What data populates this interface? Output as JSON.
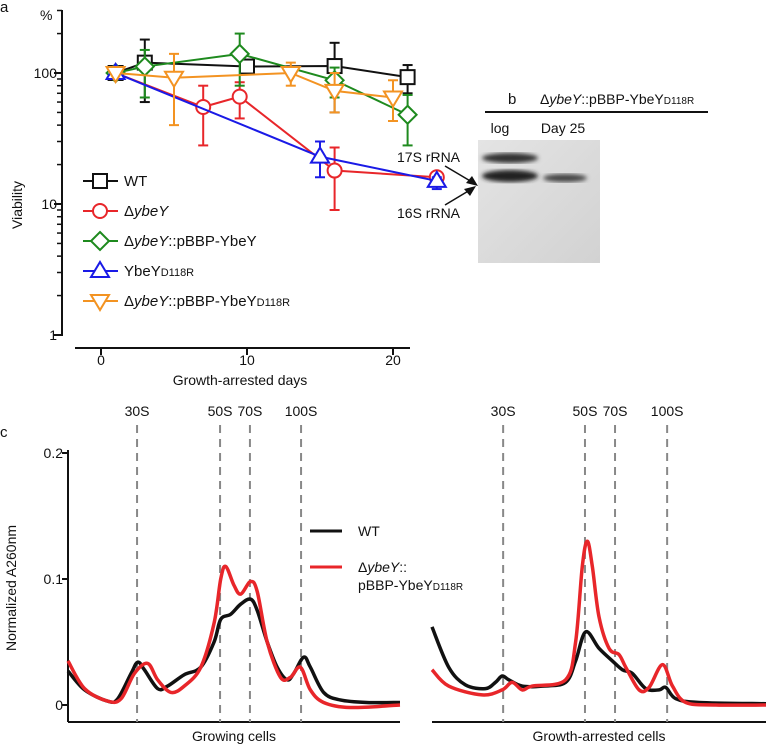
{
  "chart_data": [
    {
      "panel": "a",
      "type": "line",
      "yscale": "log",
      "xlabel": "Growth-arrested days",
      "ylabel": "Viability",
      "yunit": "%",
      "xlim": [
        -2,
        24
      ],
      "ylim": [
        1,
        300
      ],
      "xticks": [
        "0",
        "10",
        "20"
      ],
      "yticks": [
        "1",
        "10",
        "100"
      ],
      "legend_position": "bottom-left",
      "series": [
        {
          "name": "WT",
          "legend": {
            "prefix": "",
            "italic": "",
            "suffix": "WT",
            "sub": ""
          },
          "color": "#111111",
          "marker": "square",
          "x": [
            1,
            3,
            10,
            16,
            21
          ],
          "y": [
            100,
            120,
            112,
            113,
            93
          ],
          "err": [
            [
              100,
              100
            ],
            [
              60,
              180
            ],
            [
              100,
              125
            ],
            [
              50,
              170
            ],
            [
              70,
              115
            ]
          ]
        },
        {
          "name": "ΔybeY",
          "legend": {
            "prefix": "Δ",
            "italic": "ybeY",
            "suffix": "",
            "sub": ""
          },
          "color": "#e8262a",
          "marker": "circle",
          "x": [
            1,
            7,
            9.5,
            16,
            23
          ],
          "y": [
            100,
            55,
            66,
            18,
            16
          ],
          "err": [
            [
              100,
              100
            ],
            [
              28,
              80
            ],
            [
              45,
              85
            ],
            [
              9,
              27
            ],
            [
              15,
              17
            ]
          ]
        },
        {
          "name": "ΔybeY::pBBP-YbeY",
          "legend": {
            "prefix": "Δ",
            "italic": "ybeY",
            "suffix": "::pBBP-YbeY",
            "sub": ""
          },
          "color": "#1e8a1e",
          "marker": "diamond",
          "x": [
            1,
            3,
            9.5,
            16,
            21
          ],
          "y": [
            100,
            112,
            140,
            88,
            48
          ],
          "err": [
            [
              100,
              100
            ],
            [
              65,
              150
            ],
            [
              80,
              200
            ],
            [
              65,
              110
            ],
            [
              28,
              68
            ]
          ]
        },
        {
          "name": "YbeYD118R",
          "legend": {
            "prefix": "",
            "italic": "",
            "suffix": "YbeY",
            "sub": "D118R"
          },
          "color": "#1a1ae6",
          "marker": "triangle-up",
          "x": [
            1,
            15,
            23
          ],
          "y": [
            100,
            23,
            15
          ],
          "err": [
            [
              100,
              100
            ],
            [
              16,
              30
            ],
            [
              13,
              16
            ]
          ]
        },
        {
          "name": "ΔybeY::pBBP-YbeYD118R",
          "legend": {
            "prefix": "Δ",
            "italic": "ybeY",
            "suffix": "::pBBP-YbeY",
            "sub": "D118R"
          },
          "color": "#f39322",
          "marker": "triangle-down",
          "x": [
            1,
            5,
            13,
            16,
            20
          ],
          "y": [
            100,
            92,
            100,
            73,
            65
          ],
          "err": [
            [
              100,
              100
            ],
            [
              40,
              140
            ],
            [
              80,
              120
            ],
            [
              50,
              100
            ],
            [
              43,
              88
            ]
          ]
        }
      ]
    },
    {
      "panel": "c",
      "type": "line",
      "ylabel": "Normalized A260nm",
      "ylim": [
        0,
        0.2
      ],
      "yticks": [
        "0",
        "0.1",
        "0.2"
      ],
      "x_units": "gradient position (% from top)",
      "markers": [
        {
          "label": "30S"
        },
        {
          "label": "50S"
        },
        {
          "label": "70S"
        },
        {
          "label": "100S"
        }
      ],
      "legend": [
        {
          "name": "WT",
          "color": "#111111",
          "prefix": "",
          "italic": "",
          "suffix": "WT",
          "line2": "",
          "sub": ""
        },
        {
          "name": "ΔybeY::pBBP-YbeYD118R",
          "color": "#e8262a",
          "prefix": "Δ",
          "italic": "ybeY",
          "suffix": "::",
          "line2": "pBBP-YbeY",
          "sub": "D118R"
        }
      ],
      "subplots": [
        {
          "xlabel": "Growing cells",
          "marker_positions": [
            20.8,
            45.8,
            54.8,
            70.2
          ],
          "series": [
            {
              "name": "WT",
              "color": "#111111",
              "points": [
                [
                  0,
                  0.027
                ],
                [
                  5,
                  0.012
                ],
                [
                  12,
                  0.003
                ],
                [
                  15,
                  0.005
                ],
                [
                  19,
                  0.025
                ],
                [
                  21,
                  0.034
                ],
                [
                  23,
                  0.028
                ],
                [
                  27,
                  0.013
                ],
                [
                  30,
                  0.015
                ],
                [
                  35,
                  0.024
                ],
                [
                  40,
                  0.03
                ],
                [
                  44,
                  0.05
                ],
                [
                  46,
                  0.068
                ],
                [
                  49,
                  0.072
                ],
                [
                  52,
                  0.08
                ],
                [
                  55,
                  0.084
                ],
                [
                  57,
                  0.075
                ],
                [
                  60,
                  0.05
                ],
                [
                  63,
                  0.03
                ],
                [
                  66,
                  0.02
                ],
                [
                  68,
                  0.025
                ],
                [
                  71,
                  0.038
                ],
                [
                  73,
                  0.03
                ],
                [
                  77,
                  0.01
                ],
                [
                  82,
                  0.004
                ],
                [
                  90,
                  0.002
                ],
                [
                  100,
                  0.002
                ]
              ]
            },
            {
              "name": "ΔybeY::pBBP-YbeYD118R",
              "color": "#e8262a",
              "points": [
                [
                  0,
                  0.035
                ],
                [
                  5,
                  0.013
                ],
                [
                  12,
                  0.003
                ],
                [
                  16,
                  0.005
                ],
                [
                  20,
                  0.025
                ],
                [
                  24,
                  0.033
                ],
                [
                  27,
                  0.02
                ],
                [
                  31,
                  0.01
                ],
                [
                  35,
                  0.015
                ],
                [
                  40,
                  0.03
                ],
                [
                  44,
                  0.065
                ],
                [
                  46,
                  0.1
                ],
                [
                  47.5,
                  0.11
                ],
                [
                  50,
                  0.095
                ],
                [
                  52,
                  0.088
                ],
                [
                  55,
                  0.098
                ],
                [
                  57,
                  0.09
                ],
                [
                  60,
                  0.05
                ],
                [
                  64,
                  0.022
                ],
                [
                  67,
                  0.022
                ],
                [
                  70,
                  0.03
                ],
                [
                  73,
                  0.012
                ],
                [
                  77,
                  0.002
                ],
                [
                  85,
                  -0.002
                ],
                [
                  100,
                  0
                ]
              ]
            }
          ]
        },
        {
          "xlabel": "Growth-arrested cells",
          "marker_positions": [
            21.3,
            45.8,
            54.8,
            70.4
          ],
          "series": [
            {
              "name": "WT",
              "color": "#111111",
              "points": [
                [
                  0,
                  0.062
                ],
                [
                  5,
                  0.03
                ],
                [
                  10,
                  0.016
                ],
                [
                  16,
                  0.013
                ],
                [
                  19,
                  0.018
                ],
                [
                  21,
                  0.023
                ],
                [
                  23,
                  0.02
                ],
                [
                  27,
                  0.015
                ],
                [
                  33,
                  0.015
                ],
                [
                  40,
                  0.018
                ],
                [
                  43,
                  0.035
                ],
                [
                  46,
                  0.058
                ],
                [
                  50,
                  0.045
                ],
                [
                  54,
                  0.035
                ],
                [
                  57,
                  0.028
                ],
                [
                  60,
                  0.025
                ],
                [
                  64,
                  0.013
                ],
                [
                  68,
                  0.012
                ],
                [
                  70,
                  0.014
                ],
                [
                  73,
                  0.005
                ],
                [
                  80,
                  0.002
                ],
                [
                  100,
                  0.001
                ]
              ]
            },
            {
              "name": "ΔybeY::pBBP-YbeYD118R",
              "color": "#e8262a",
              "points": [
                [
                  0,
                  0.028
                ],
                [
                  5,
                  0.015
                ],
                [
                  15,
                  0.008
                ],
                [
                  21,
                  0.012
                ],
                [
                  24,
                  0.018
                ],
                [
                  27,
                  0.012
                ],
                [
                  30,
                  0.015
                ],
                [
                  40,
                  0.02
                ],
                [
                  43,
                  0.05
                ],
                [
                  45,
                  0.11
                ],
                [
                  46.5,
                  0.13
                ],
                [
                  48,
                  0.11
                ],
                [
                  50,
                  0.07
                ],
                [
                  53,
                  0.045
                ],
                [
                  56,
                  0.04
                ],
                [
                  58,
                  0.03
                ],
                [
                  62,
                  0.012
                ],
                [
                  65,
                  0.014
                ],
                [
                  69,
                  0.032
                ],
                [
                  72,
                  0.015
                ],
                [
                  76,
                  0.002
                ],
                [
                  85,
                  0
                ],
                [
                  100,
                  0
                ]
              ]
            }
          ]
        }
      ]
    }
  ],
  "panels": {
    "a": "a",
    "b": "b",
    "c": "c"
  },
  "gel": {
    "title": {
      "prefix": "Δ",
      "italic": "ybeY",
      "suffix": "::pBBP-YbeY",
      "sub": "D118R"
    },
    "lanes": [
      "log",
      "Day 25"
    ],
    "bands": [
      "17S rRNA",
      "16S rRNA"
    ]
  }
}
